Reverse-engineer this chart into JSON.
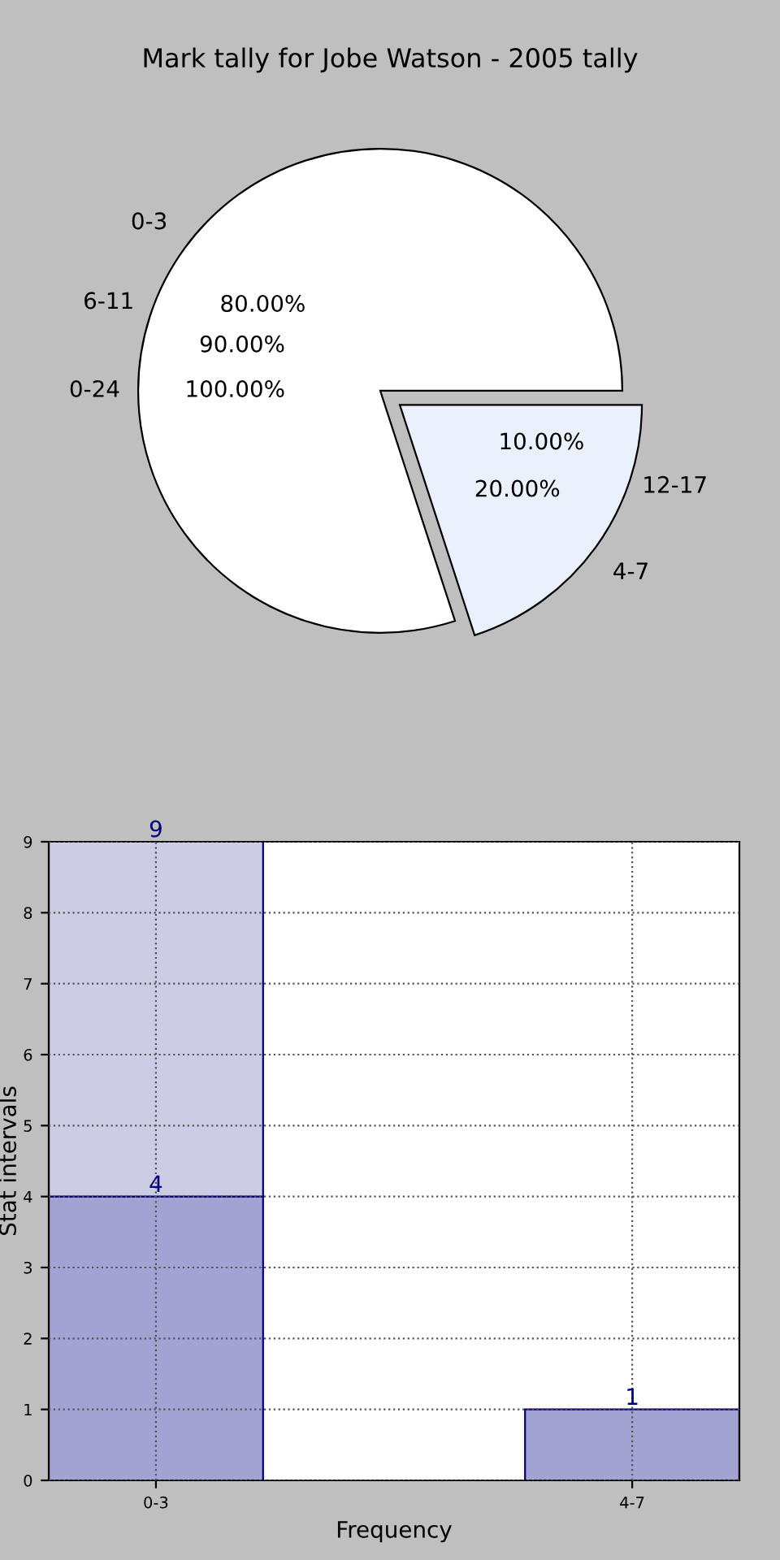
{
  "chart_data": [
    {
      "type": "pie",
      "title": "Mark tally for Jobe Watson - 2005 tally",
      "categories": [
        "0-3",
        "4-7"
      ],
      "values": [
        80,
        20
      ],
      "colors": [
        "#ffffff",
        "#eaf0fc"
      ],
      "value_labels": [
        "80.00%",
        "20.00%"
      ],
      "annotations": [
        "6-11",
        "90.00%",
        "12-17",
        "10.00%",
        "0-24",
        "100.00%"
      ]
    },
    {
      "type": "bar",
      "categories": [
        "0-3",
        "4-7"
      ],
      "xlabel": "Frequency",
      "ylabel": "Stat intervals",
      "stacked": true,
      "series": [
        {
          "color": "#a3a3d3",
          "values": [
            4,
            1
          ],
          "value_labels": [
            "4",
            "1"
          ]
        },
        {
          "color": "#ccccE4",
          "values": [
            5,
            null
          ]
        }
      ],
      "totals": [
        "9",
        null
      ],
      "ylim": [
        0,
        9
      ],
      "yticks": [
        0,
        1,
        2,
        3,
        4,
        5,
        6,
        7,
        8,
        9
      ],
      "grid": true
    }
  ]
}
